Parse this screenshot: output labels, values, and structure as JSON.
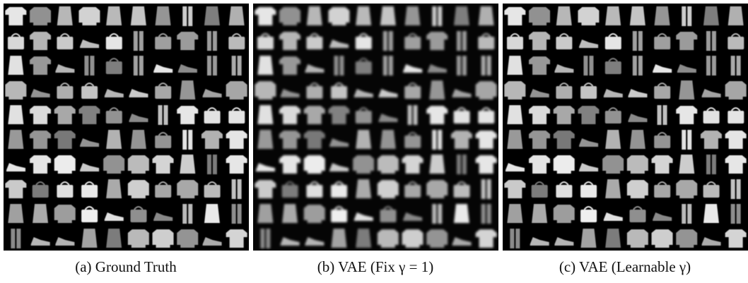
{
  "panels": [
    {
      "caption": "(a) Ground Truth"
    },
    {
      "caption": "(b) VAE (Fix γ = 1)"
    },
    {
      "caption": "(c) VAE (Learnable γ)"
    }
  ]
}
